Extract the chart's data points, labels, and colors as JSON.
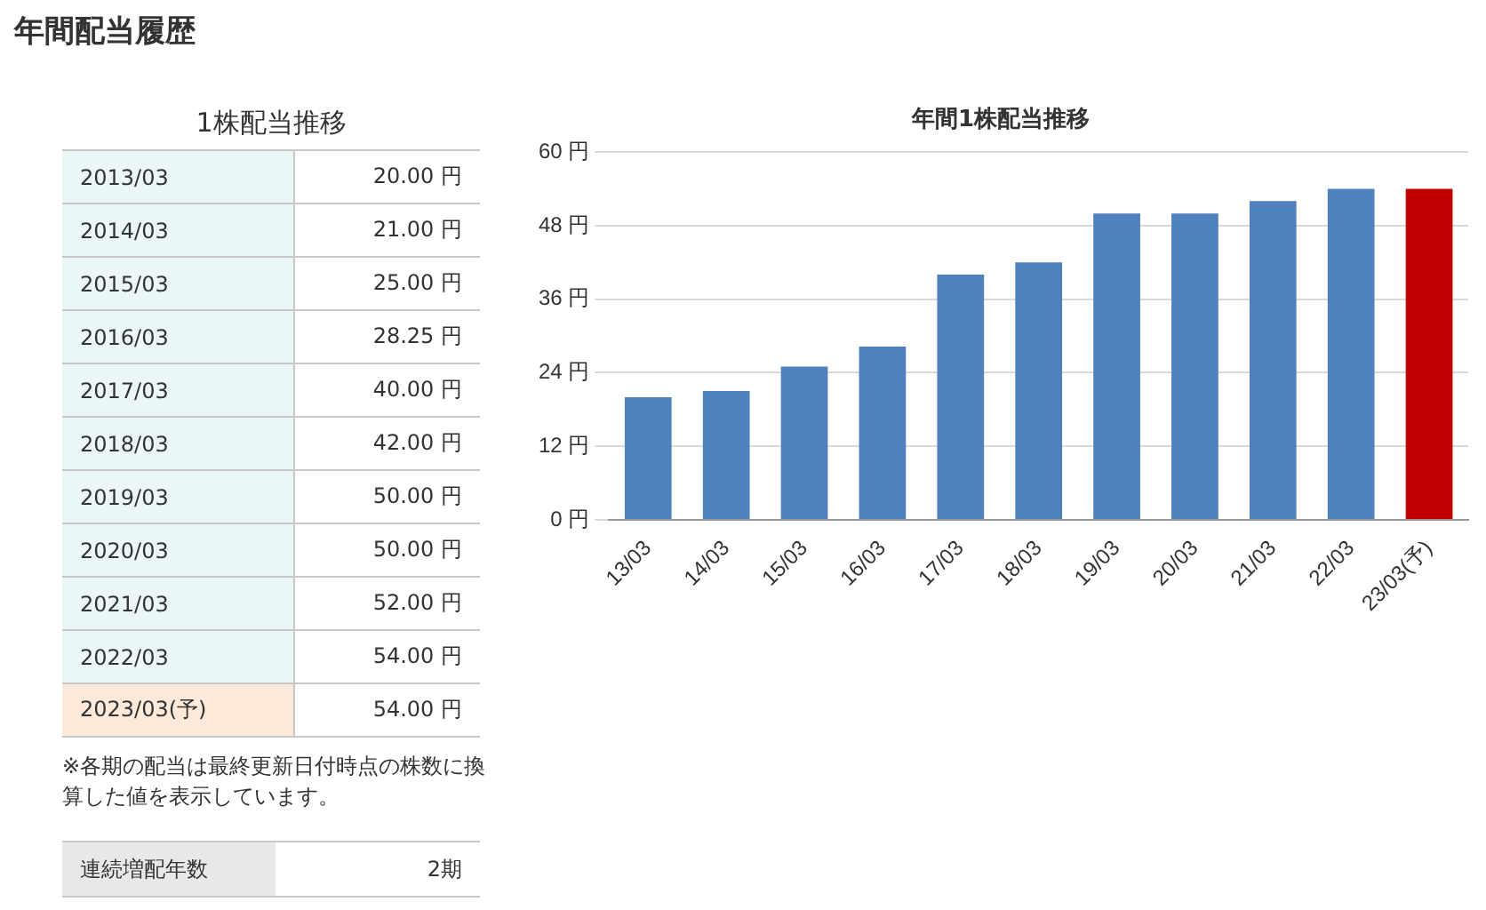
{
  "chart_data": {
    "type": "bar",
    "title": "年間1株配当推移",
    "categories": [
      "13/03",
      "14/03",
      "15/03",
      "16/03",
      "17/03",
      "18/03",
      "19/03",
      "20/03",
      "21/03",
      "22/03",
      "23/03(予)"
    ],
    "values": [
      20,
      21,
      25,
      28.25,
      40,
      42,
      50,
      50,
      52,
      54,
      54
    ],
    "colors": [
      "#4f81bd",
      "#4f81bd",
      "#4f81bd",
      "#4f81bd",
      "#4f81bd",
      "#4f81bd",
      "#4f81bd",
      "#4f81bd",
      "#4f81bd",
      "#4f81bd",
      "#c00000"
    ],
    "ylim": [
      0,
      60
    ],
    "yticks": [
      {
        "value": 0,
        "label": "0 円"
      },
      {
        "value": 12,
        "label": "12 円"
      },
      {
        "value": 24,
        "label": "24 円"
      },
      {
        "value": 36,
        "label": "36 円"
      },
      {
        "value": 48,
        "label": "48 円"
      },
      {
        "value": 60,
        "label": "60 円"
      }
    ],
    "grid": "y",
    "legend": false,
    "annotations": [
      "年間配当履歴",
      "1株配当推移",
      "2013/03",
      "2014/03",
      "2015/03",
      "2016/03",
      "2017/03",
      "2018/03",
      "2019/03",
      "2020/03",
      "2021/03",
      "2022/03",
      "2023/03(予)",
      "20.00 円",
      "21.00 円",
      "25.00 円",
      "28.25 円",
      "40.00 円",
      "42.00 円",
      "50.00 円",
      "50.00 円",
      "52.00 円",
      "54.00 円",
      "54.00 円",
      "※各期の配当は最終更新日付時点の株数に換算した値を表示しています。",
      "連続増配年数",
      "2期"
    ]
  }
}
